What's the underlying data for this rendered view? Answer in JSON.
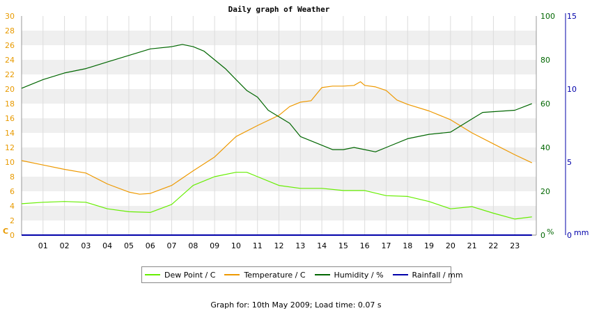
{
  "chart_data": {
    "type": "line",
    "title": "Daily graph of Weather",
    "x_tick_labels": [
      "01",
      "02",
      "03",
      "04",
      "05",
      "06",
      "07",
      "08",
      "09",
      "10",
      "11",
      "12",
      "13",
      "14",
      "15",
      "16",
      "17",
      "18",
      "19",
      "20",
      "21",
      "22",
      "23"
    ],
    "xlim": [
      0,
      24
    ],
    "left_axis": {
      "unit": "C",
      "ylim": [
        0,
        30
      ],
      "ticks": [
        0,
        2,
        4,
        6,
        8,
        10,
        12,
        14,
        16,
        18,
        20,
        22,
        24,
        26,
        28,
        30
      ],
      "color": "#e89a00"
    },
    "right_axis_1": {
      "unit": "%",
      "ylim": [
        0,
        100
      ],
      "ticks": [
        0,
        20,
        40,
        60,
        80,
        100
      ],
      "color": "#006600"
    },
    "right_axis_2": {
      "unit": "mm",
      "ylim": [
        0,
        15
      ],
      "ticks": [
        0,
        5,
        10,
        15
      ],
      "color": "#0000aa"
    },
    "grid": "horizontal bands",
    "legend_position": "bottom",
    "series": [
      {
        "name": "Dew Point / C",
        "color": "#66ee00",
        "axis": "left",
        "x": [
          0,
          1,
          2,
          3,
          4,
          5,
          6,
          7,
          8,
          9,
          10,
          10.5,
          11,
          12,
          13,
          14,
          15,
          16,
          17,
          18,
          19,
          20,
          21,
          22,
          23,
          23.8
        ],
        "y": [
          4.3,
          4.5,
          4.6,
          4.5,
          3.6,
          3.2,
          3.1,
          4.2,
          6.8,
          8.0,
          8.6,
          8.6,
          8.0,
          6.8,
          6.4,
          6.4,
          6.1,
          6.1,
          5.4,
          5.3,
          4.6,
          3.6,
          3.9,
          3.0,
          2.2,
          2.5
        ]
      },
      {
        "name": "Temperature / C",
        "color": "#ee9900",
        "axis": "left",
        "x": [
          0,
          1,
          2,
          3,
          4,
          5,
          5.5,
          6,
          7,
          8,
          9,
          10,
          11,
          12,
          12.5,
          13,
          13.5,
          14,
          14.5,
          15,
          15.5,
          15.8,
          16,
          16.5,
          17,
          17.5,
          18,
          19,
          20,
          21,
          22,
          23,
          23.8
        ],
        "y": [
          10.2,
          9.6,
          9.0,
          8.5,
          7.0,
          5.9,
          5.6,
          5.7,
          6.8,
          8.8,
          10.7,
          13.5,
          15.0,
          16.4,
          17.6,
          18.2,
          18.4,
          20.2,
          20.4,
          20.4,
          20.5,
          21.0,
          20.5,
          20.3,
          19.8,
          18.5,
          17.9,
          17.0,
          15.8,
          14.0,
          12.5,
          11.0,
          9.9
        ]
      },
      {
        "name": "Humidity / %",
        "color": "#006600",
        "axis": "right_1",
        "x": [
          0,
          1,
          2,
          3,
          4,
          5,
          6,
          7,
          7.5,
          8,
          8.5,
          9,
          9.5,
          10,
          10.5,
          11,
          11.5,
          12,
          12.5,
          13,
          13.5,
          14,
          14.5,
          15,
          15.5,
          16,
          16.5,
          17,
          18,
          19,
          20,
          20.5,
          21,
          21.5,
          23,
          23.8
        ],
        "y": [
          67,
          71,
          74,
          76,
          79,
          82,
          85,
          86,
          87,
          86,
          84,
          80,
          76,
          71,
          66,
          63,
          57,
          54,
          51,
          45,
          43,
          41,
          39,
          39,
          40,
          39,
          38,
          40,
          44,
          46,
          47,
          50,
          53,
          56,
          57,
          60
        ]
      },
      {
        "name": "Rainfall / mm",
        "color": "#0000aa",
        "axis": "right_2",
        "x": [
          0,
          23.8
        ],
        "y": [
          0,
          0
        ]
      }
    ]
  },
  "footer": "Graph for: 10th May 2009; Load time: 0.07 s"
}
